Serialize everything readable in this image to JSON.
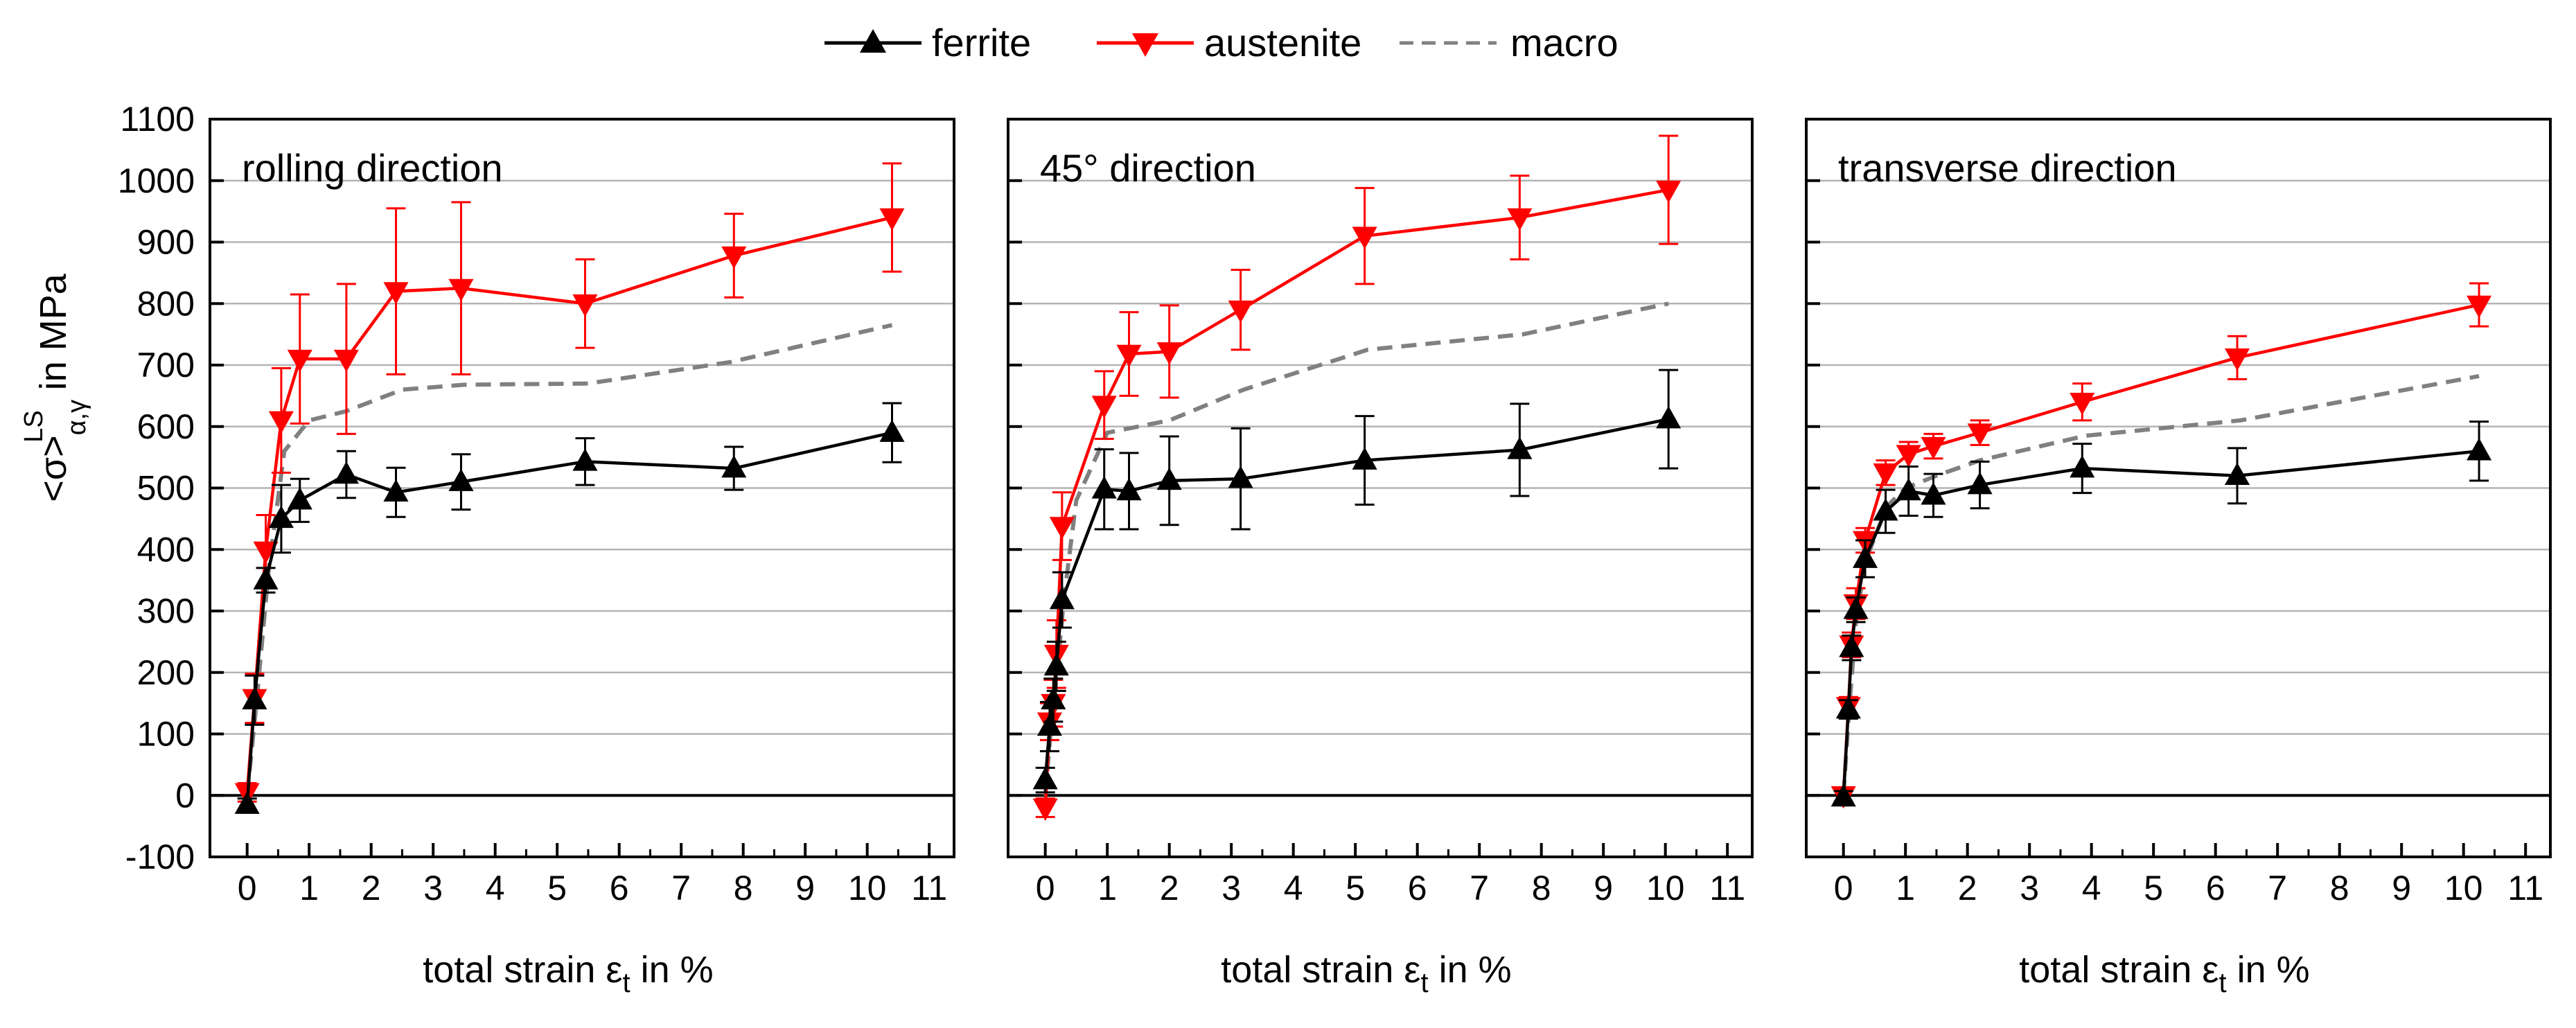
{
  "legend": {
    "items": [
      {
        "key": "ferrite",
        "label": "ferrite",
        "color": "#000000",
        "marker": "triangle-up",
        "style": "solid"
      },
      {
        "key": "austenite",
        "label": "austenite",
        "color": "#ff0000",
        "marker": "triangle-down",
        "style": "solid"
      },
      {
        "key": "macro",
        "label": "macro",
        "color": "#808080",
        "marker": "none",
        "style": "dashed"
      }
    ]
  },
  "y_axis": {
    "label_main": "<σ>",
    "label_sup": "LS",
    "label_sub": "α,γ",
    "label_suffix": " in MPa",
    "ylim": [
      -100,
      1100
    ],
    "ticks": [
      -100,
      0,
      100,
      200,
      300,
      400,
      500,
      600,
      700,
      800,
      900,
      1000,
      1100
    ]
  },
  "x_axis": {
    "label_main": "total strain ε",
    "label_sub": "t",
    "label_suffix": " in %",
    "xlim": [
      -0.6,
      11.4
    ],
    "ticks": [
      0,
      1,
      2,
      3,
      4,
      5,
      6,
      7,
      8,
      9,
      10,
      11
    ]
  },
  "chart_data": [
    {
      "type": "line",
      "title": "rolling direction",
      "series": [
        {
          "name": "ferrite",
          "x": [
            0.0,
            0.12,
            0.3,
            0.55,
            0.85,
            1.6,
            2.4,
            3.45,
            5.45,
            7.85,
            10.4
          ],
          "y": [
            -15,
            155,
            350,
            450,
            480,
            522,
            493,
            510,
            543,
            532,
            590
          ],
          "err": [
            10,
            40,
            20,
            55,
            35,
            38,
            40,
            45,
            38,
            35,
            48
          ]
        },
        {
          "name": "austenite",
          "x": [
            0.0,
            0.12,
            0.3,
            0.55,
            0.85,
            1.6,
            2.4,
            3.45,
            5.45,
            7.85,
            10.4
          ],
          "y": [
            5,
            158,
            398,
            610,
            710,
            710,
            820,
            825,
            800,
            878,
            940
          ],
          "err": [
            15,
            40,
            58,
            85,
            105,
            122,
            135,
            140,
            72,
            68,
            88
          ]
        },
        {
          "name": "macro",
          "x": [
            0.0,
            0.15,
            0.35,
            0.6,
            1.0,
            1.6,
            2.5,
            3.5,
            5.5,
            7.8,
            10.4
          ],
          "y": [
            0,
            150,
            370,
            560,
            610,
            625,
            660,
            668,
            670,
            705,
            765
          ]
        }
      ]
    },
    {
      "type": "line",
      "title": "45° direction",
      "series": [
        {
          "name": "ferrite",
          "x": [
            0.0,
            0.07,
            0.13,
            0.18,
            0.27,
            0.95,
            1.35,
            2.0,
            3.15,
            5.15,
            7.65,
            10.05
          ],
          "y": [
            25,
            112,
            155,
            210,
            318,
            498,
            495,
            512,
            515,
            545,
            562,
            612
          ],
          "err": [
            20,
            40,
            35,
            40,
            45,
            65,
            62,
            72,
            82,
            72,
            75,
            80
          ]
        },
        {
          "name": "austenite",
          "x": [
            0.0,
            0.07,
            0.13,
            0.18,
            0.27,
            0.95,
            1.35,
            2.0,
            3.15,
            5.15,
            7.65,
            10.05
          ],
          "y": [
            -20,
            120,
            150,
            230,
            438,
            635,
            718,
            722,
            790,
            910,
            940,
            985
          ],
          "err": [
            15,
            30,
            38,
            55,
            55,
            55,
            68,
            75,
            65,
            78,
            68,
            88
          ]
        },
        {
          "name": "macro",
          "x": [
            0.0,
            0.1,
            0.2,
            0.3,
            0.5,
            1.0,
            2.0,
            3.2,
            5.2,
            7.7,
            10.05
          ],
          "y": [
            0,
            120,
            210,
            320,
            480,
            590,
            610,
            660,
            725,
            750,
            800
          ]
        }
      ]
    },
    {
      "type": "line",
      "title": "transverse direction",
      "series": [
        {
          "name": "ferrite",
          "x": [
            0.0,
            0.08,
            0.13,
            0.2,
            0.35,
            0.68,
            1.05,
            1.45,
            2.2,
            3.85,
            6.35,
            10.25
          ],
          "y": [
            -3,
            140,
            240,
            302,
            385,
            462,
            495,
            488,
            505,
            532,
            520,
            560
          ],
          "err": [
            10,
            15,
            20,
            20,
            30,
            35,
            40,
            35,
            38,
            40,
            45,
            48
          ]
        },
        {
          "name": "austenite",
          "x": [
            0.0,
            0.08,
            0.13,
            0.2,
            0.35,
            0.68,
            1.05,
            1.45,
            2.2,
            3.85,
            6.35,
            10.25
          ],
          "y": [
            0,
            145,
            245,
            312,
            415,
            525,
            555,
            568,
            590,
            640,
            712,
            798
          ],
          "err": [
            10,
            15,
            20,
            25,
            20,
            20,
            20,
            20,
            20,
            30,
            35,
            35
          ]
        },
        {
          "name": "macro",
          "x": [
            0.0,
            0.1,
            0.2,
            0.35,
            0.7,
            1.0,
            1.5,
            2.2,
            3.9,
            6.4,
            10.25
          ],
          "y": [
            0,
            150,
            280,
            380,
            470,
            500,
            520,
            545,
            585,
            610,
            682
          ]
        }
      ]
    }
  ]
}
